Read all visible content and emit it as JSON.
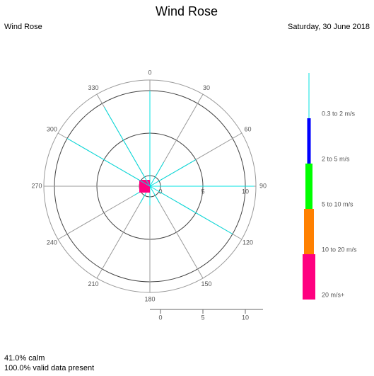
{
  "chart_data": {
    "type": "windrose",
    "title": "Wind Rose",
    "subtitle": "Wind Rose",
    "date": "Saturday, 30 June 2018",
    "directions": [
      0,
      30,
      60,
      90,
      120,
      150,
      180,
      210,
      240,
      270,
      300,
      330
    ],
    "series": [
      {
        "name": "0.3 to 2 m/s",
        "color": "#00e0e0",
        "width": 1,
        "values": [
          10,
          2,
          5,
          11,
          10,
          1,
          1,
          1,
          1,
          0,
          10,
          9.5
        ]
      },
      {
        "name": "2 to 5 m/s",
        "color": "#0000ff",
        "width": 5,
        "values": [
          0,
          0,
          0,
          0,
          0,
          0,
          0,
          0,
          0,
          0,
          0,
          0
        ]
      },
      {
        "name": "5 to 10 m/s",
        "color": "#00ff00",
        "width": 10,
        "values": [
          0,
          0,
          0,
          0,
          0,
          0,
          0,
          0,
          0,
          0,
          0,
          0
        ]
      },
      {
        "name": "10 to 20 m/s",
        "color": "#ff8000",
        "width": 14,
        "values": [
          0,
          0,
          0,
          0,
          0,
          0,
          0,
          0,
          0,
          0,
          0,
          0
        ]
      },
      {
        "name": "20 m/s+",
        "color": "#ff0080",
        "width": 18,
        "values": [
          0,
          0,
          0,
          0,
          0,
          0,
          0,
          0,
          0,
          0,
          0,
          0
        ]
      }
    ],
    "rlim": [
      0,
      11.25
    ],
    "rticks": [
      0,
      5,
      10
    ],
    "calm": "41.0% calm",
    "valid": "100.0% valid data present"
  }
}
